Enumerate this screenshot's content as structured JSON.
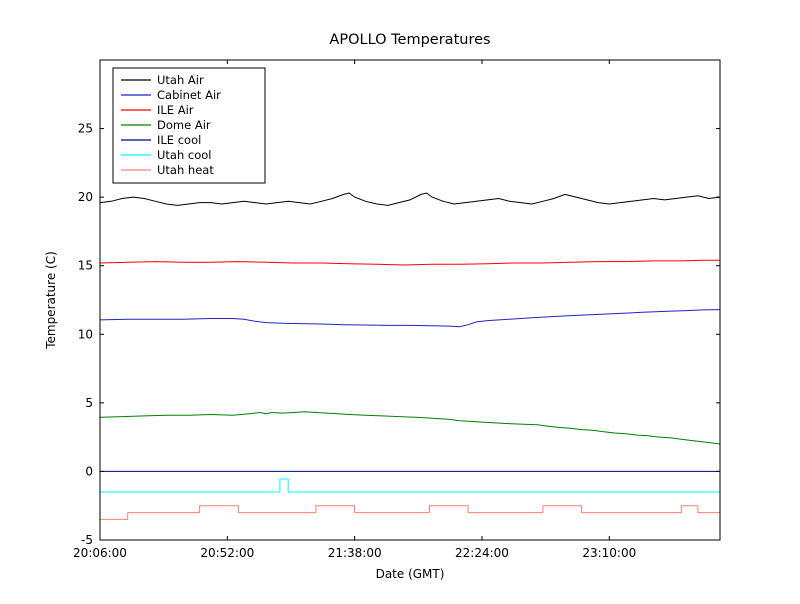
{
  "figure": {
    "background": "#ffffff",
    "frame_color": "#000000"
  },
  "chart_data": {
    "type": "line",
    "title": "APOLLO Temperatures",
    "xlabel": "Date (GMT)",
    "ylabel": "Temperature (C)",
    "ylim": [
      -5,
      30
    ],
    "yticks": [
      -5,
      0,
      5,
      10,
      15,
      20,
      25
    ],
    "xlim_minutes": [
      0,
      224
    ],
    "xticks": [
      {
        "t": 0,
        "label": "20:06:00"
      },
      {
        "t": 46,
        "label": "20:52:00"
      },
      {
        "t": 92,
        "label": "21:38:00"
      },
      {
        "t": 138,
        "label": "22:24:00"
      },
      {
        "t": 184,
        "label": "23:10:00"
      }
    ],
    "grid": false,
    "legend_position": "upper left",
    "series": [
      {
        "name": "Utah Air",
        "color": "#000000",
        "points": [
          [
            0,
            19.6
          ],
          [
            4,
            19.7
          ],
          [
            8,
            19.9
          ],
          [
            12,
            20.0
          ],
          [
            16,
            19.9
          ],
          [
            20,
            19.7
          ],
          [
            24,
            19.5
          ],
          [
            28,
            19.4
          ],
          [
            32,
            19.5
          ],
          [
            36,
            19.6
          ],
          [
            40,
            19.6
          ],
          [
            44,
            19.5
          ],
          [
            48,
            19.6
          ],
          [
            52,
            19.7
          ],
          [
            56,
            19.6
          ],
          [
            60,
            19.5
          ],
          [
            64,
            19.6
          ],
          [
            68,
            19.7
          ],
          [
            72,
            19.6
          ],
          [
            76,
            19.5
          ],
          [
            80,
            19.7
          ],
          [
            84,
            19.9
          ],
          [
            88,
            20.2
          ],
          [
            90,
            20.3
          ],
          [
            92,
            20.0
          ],
          [
            96,
            19.7
          ],
          [
            100,
            19.5
          ],
          [
            104,
            19.4
          ],
          [
            108,
            19.6
          ],
          [
            112,
            19.8
          ],
          [
            116,
            20.2
          ],
          [
            118,
            20.3
          ],
          [
            120,
            20.0
          ],
          [
            124,
            19.7
          ],
          [
            128,
            19.5
          ],
          [
            132,
            19.6
          ],
          [
            136,
            19.7
          ],
          [
            140,
            19.8
          ],
          [
            144,
            19.9
          ],
          [
            148,
            19.7
          ],
          [
            152,
            19.6
          ],
          [
            156,
            19.5
          ],
          [
            160,
            19.7
          ],
          [
            164,
            19.9
          ],
          [
            168,
            20.2
          ],
          [
            172,
            20.0
          ],
          [
            176,
            19.8
          ],
          [
            180,
            19.6
          ],
          [
            184,
            19.5
          ],
          [
            188,
            19.6
          ],
          [
            192,
            19.7
          ],
          [
            196,
            19.8
          ],
          [
            200,
            19.9
          ],
          [
            204,
            19.8
          ],
          [
            208,
            19.9
          ],
          [
            212,
            20.0
          ],
          [
            216,
            20.1
          ],
          [
            220,
            19.9
          ],
          [
            224,
            20.0
          ]
        ]
      },
      {
        "name": "Cabinet Air",
        "color": "#2222cc",
        "points": [
          [
            0,
            11.05
          ],
          [
            10,
            11.1
          ],
          [
            20,
            11.1
          ],
          [
            30,
            11.1
          ],
          [
            40,
            11.15
          ],
          [
            48,
            11.15
          ],
          [
            52,
            11.1
          ],
          [
            56,
            10.95
          ],
          [
            60,
            10.85
          ],
          [
            66,
            10.8
          ],
          [
            72,
            10.78
          ],
          [
            80,
            10.75
          ],
          [
            88,
            10.7
          ],
          [
            96,
            10.68
          ],
          [
            104,
            10.65
          ],
          [
            112,
            10.65
          ],
          [
            120,
            10.62
          ],
          [
            126,
            10.6
          ],
          [
            130,
            10.55
          ],
          [
            133,
            10.7
          ],
          [
            136,
            10.9
          ],
          [
            140,
            11.0
          ],
          [
            148,
            11.1
          ],
          [
            156,
            11.2
          ],
          [
            164,
            11.3
          ],
          [
            172,
            11.38
          ],
          [
            180,
            11.45
          ],
          [
            188,
            11.52
          ],
          [
            196,
            11.6
          ],
          [
            204,
            11.67
          ],
          [
            212,
            11.73
          ],
          [
            218,
            11.78
          ],
          [
            224,
            11.8
          ]
        ]
      },
      {
        "name": "ILE Air",
        "color": "#ff0000",
        "points": [
          [
            0,
            15.2
          ],
          [
            10,
            15.25
          ],
          [
            20,
            15.3
          ],
          [
            30,
            15.25
          ],
          [
            40,
            15.25
          ],
          [
            50,
            15.3
          ],
          [
            60,
            15.25
          ],
          [
            70,
            15.2
          ],
          [
            80,
            15.2
          ],
          [
            90,
            15.15
          ],
          [
            100,
            15.1
          ],
          [
            110,
            15.05
          ],
          [
            120,
            15.1
          ],
          [
            130,
            15.1
          ],
          [
            140,
            15.15
          ],
          [
            150,
            15.2
          ],
          [
            160,
            15.2
          ],
          [
            170,
            15.25
          ],
          [
            180,
            15.3
          ],
          [
            190,
            15.3
          ],
          [
            200,
            15.35
          ],
          [
            210,
            15.35
          ],
          [
            218,
            15.4
          ],
          [
            224,
            15.4
          ]
        ]
      },
      {
        "name": "Dome Air",
        "color": "#008000",
        "points": [
          [
            0,
            3.95
          ],
          [
            8,
            4.0
          ],
          [
            16,
            4.05
          ],
          [
            24,
            4.1
          ],
          [
            32,
            4.1
          ],
          [
            40,
            4.15
          ],
          [
            48,
            4.1
          ],
          [
            54,
            4.2
          ],
          [
            58,
            4.3
          ],
          [
            60,
            4.2
          ],
          [
            62,
            4.3
          ],
          [
            66,
            4.25
          ],
          [
            70,
            4.3
          ],
          [
            74,
            4.35
          ],
          [
            78,
            4.3
          ],
          [
            82,
            4.25
          ],
          [
            86,
            4.2
          ],
          [
            90,
            4.15
          ],
          [
            96,
            4.1
          ],
          [
            102,
            4.05
          ],
          [
            108,
            4.0
          ],
          [
            114,
            3.95
          ],
          [
            118,
            3.9
          ],
          [
            122,
            3.85
          ],
          [
            126,
            3.8
          ],
          [
            130,
            3.7
          ],
          [
            134,
            3.65
          ],
          [
            138,
            3.6
          ],
          [
            142,
            3.55
          ],
          [
            146,
            3.5
          ],
          [
            152,
            3.45
          ],
          [
            158,
            3.4
          ],
          [
            162,
            3.3
          ],
          [
            166,
            3.2
          ],
          [
            170,
            3.15
          ],
          [
            174,
            3.05
          ],
          [
            178,
            3.0
          ],
          [
            182,
            2.9
          ],
          [
            186,
            2.8
          ],
          [
            190,
            2.75
          ],
          [
            194,
            2.65
          ],
          [
            198,
            2.6
          ],
          [
            202,
            2.5
          ],
          [
            206,
            2.45
          ],
          [
            210,
            2.35
          ],
          [
            214,
            2.25
          ],
          [
            218,
            2.15
          ],
          [
            222,
            2.05
          ],
          [
            224,
            2.0
          ]
        ]
      },
      {
        "name": "ILE cool",
        "color": "#000080",
        "points": [
          [
            0,
            0
          ],
          [
            224,
            0
          ]
        ]
      },
      {
        "name": "Utah cool",
        "color": "#00ffff",
        "points": [
          [
            0,
            -1.5
          ],
          [
            65,
            -1.5
          ],
          [
            65,
            -0.55
          ],
          [
            68,
            -0.55
          ],
          [
            68,
            -1.5
          ],
          [
            224,
            -1.5
          ]
        ]
      },
      {
        "name": "Utah heat",
        "color": "#fa8072",
        "points": [
          [
            0,
            -3.5
          ],
          [
            10,
            -3.5
          ],
          [
            10,
            -3.0
          ],
          [
            36,
            -3.0
          ],
          [
            36,
            -2.5
          ],
          [
            50,
            -2.5
          ],
          [
            50,
            -3.0
          ],
          [
            78,
            -3.0
          ],
          [
            78,
            -2.5
          ],
          [
            92,
            -2.5
          ],
          [
            92,
            -3.0
          ],
          [
            119,
            -3.0
          ],
          [
            119,
            -2.5
          ],
          [
            133,
            -2.5
          ],
          [
            133,
            -3.0
          ],
          [
            160,
            -3.0
          ],
          [
            160,
            -2.5
          ],
          [
            174,
            -2.5
          ],
          [
            174,
            -3.0
          ],
          [
            210,
            -3.0
          ],
          [
            210,
            -2.5
          ],
          [
            216,
            -2.5
          ],
          [
            216,
            -3.0
          ],
          [
            224,
            -3.0
          ]
        ]
      }
    ]
  }
}
